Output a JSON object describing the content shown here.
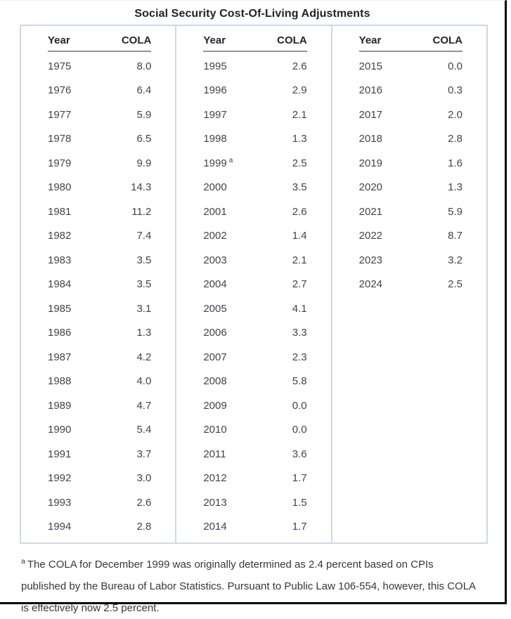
{
  "title": "Social Security Cost-Of-Living Adjustments",
  "table": {
    "header": {
      "year_label": "Year",
      "cola_label": "COLA"
    },
    "columns": [
      {
        "rows": [
          {
            "year": "1975",
            "cola": "8.0"
          },
          {
            "year": "1976",
            "cola": "6.4"
          },
          {
            "year": "1977",
            "cola": "5.9"
          },
          {
            "year": "1978",
            "cola": "6.5"
          },
          {
            "year": "1979",
            "cola": "9.9"
          },
          {
            "year": "1980",
            "cola": "14.3"
          },
          {
            "year": "1981",
            "cola": "11.2"
          },
          {
            "year": "1982",
            "cola": "7.4"
          },
          {
            "year": "1983",
            "cola": "3.5"
          },
          {
            "year": "1984",
            "cola": "3.5"
          },
          {
            "year": "1985",
            "cola": "3.1"
          },
          {
            "year": "1986",
            "cola": "1.3"
          },
          {
            "year": "1987",
            "cola": "4.2"
          },
          {
            "year": "1988",
            "cola": "4.0"
          },
          {
            "year": "1989",
            "cola": "4.7"
          },
          {
            "year": "1990",
            "cola": "5.4"
          },
          {
            "year": "1991",
            "cola": "3.7"
          },
          {
            "year": "1992",
            "cola": "3.0"
          },
          {
            "year": "1993",
            "cola": "2.6"
          },
          {
            "year": "1994",
            "cola": "2.8"
          }
        ]
      },
      {
        "rows": [
          {
            "year": "1995",
            "cola": "2.6"
          },
          {
            "year": "1996",
            "cola": "2.9"
          },
          {
            "year": "1997",
            "cola": "2.1"
          },
          {
            "year": "1998",
            "cola": "1.3"
          },
          {
            "year": "1999",
            "sup": "a",
            "cola": "2.5"
          },
          {
            "year": "2000",
            "cola": "3.5"
          },
          {
            "year": "2001",
            "cola": "2.6"
          },
          {
            "year": "2002",
            "cola": "1.4"
          },
          {
            "year": "2003",
            "cola": "2.1"
          },
          {
            "year": "2004",
            "cola": "2.7"
          },
          {
            "year": "2005",
            "cola": "4.1"
          },
          {
            "year": "2006",
            "cola": "3.3"
          },
          {
            "year": "2007",
            "cola": "2.3"
          },
          {
            "year": "2008",
            "cola": "5.8"
          },
          {
            "year": "2009",
            "cola": "0.0"
          },
          {
            "year": "2010",
            "cola": "0.0"
          },
          {
            "year": "2011",
            "cola": "3.6"
          },
          {
            "year": "2012",
            "cola": "1.7"
          },
          {
            "year": "2013",
            "cola": "1.5"
          },
          {
            "year": "2014",
            "cola": "1.7"
          }
        ]
      },
      {
        "rows": [
          {
            "year": "2015",
            "cola": "0.0"
          },
          {
            "year": "2016",
            "cola": "0.3"
          },
          {
            "year": "2017",
            "cola": "2.0"
          },
          {
            "year": "2018",
            "cola": "2.8"
          },
          {
            "year": "2019",
            "cola": "1.6"
          },
          {
            "year": "2020",
            "cola": "1.3"
          },
          {
            "year": "2021",
            "cola": "5.9"
          },
          {
            "year": "2022",
            "cola": "8.7"
          },
          {
            "year": "2023",
            "cola": "3.2"
          },
          {
            "year": "2024",
            "cola": "2.5"
          }
        ]
      }
    ]
  },
  "footnote": {
    "marker": "a",
    "text": "The COLA for December 1999 was originally determined as 2.4 percent based on CPIs published by the Bureau of Labor Statistics. Pursuant to Public Law 106-554, however, this COLA is effectively now 2.5 percent."
  },
  "colors": {
    "table_border": "#cdd9e8",
    "header_underline": "#8e939e",
    "title_text": "#1f2128",
    "body_text": "#3f444c",
    "frame_border": "#000000"
  }
}
